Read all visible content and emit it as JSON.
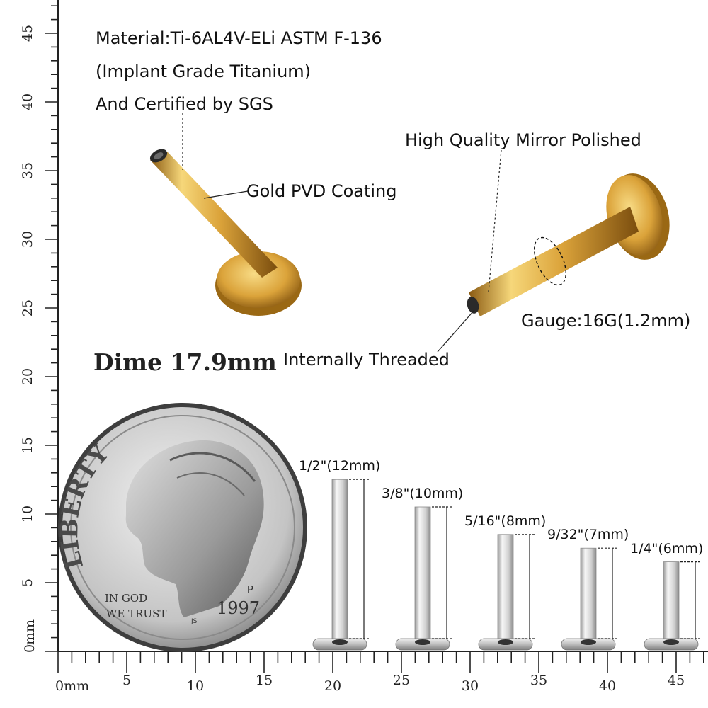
{
  "labels": {
    "material_line1": "Material:Ti-6AL4V-ELi ASTM F-136",
    "material_line2": "(Implant Grade Titanium)",
    "material_line3": "And Certified by SGS",
    "gold_coating": "Gold PVD Coating",
    "mirror_polished": "High Quality Mirror Polished",
    "gauge": "Gauge:16G(1.2mm)",
    "internally_threaded": "Internally Threaded",
    "dime": "Dime 17.9mm"
  },
  "coin": {
    "word_top": "LIBERTY",
    "motto_line1": "IN GOD",
    "motto_line2": "WE TRUST",
    "year": "1997",
    "mint_mark": "P",
    "initials": "JS"
  },
  "sizes": [
    {
      "label": "1/2\"(12mm)",
      "length_mm": 12
    },
    {
      "label": "3/8\"(10mm)",
      "length_mm": 10
    },
    {
      "label": "5/16\"(8mm)",
      "length_mm": 8
    },
    {
      "label": "9/32\"(7mm)",
      "length_mm": 7
    },
    {
      "label": "1/4\"(6mm)",
      "length_mm": 6
    }
  ],
  "ruler": {
    "unit_label": "mm",
    "bottom_zero_label": "0mm",
    "bottom_labels": [
      "5",
      "10",
      "15",
      "20",
      "25",
      "30",
      "35",
      "40",
      "45"
    ],
    "left_zero_label": "0",
    "left_labels": [
      "5",
      "10",
      "15",
      "20",
      "25",
      "30",
      "35",
      "40",
      "45"
    ]
  },
  "colors": {
    "gold_light": "#f6d77a",
    "gold_mid": "#dba33a",
    "gold_dark": "#8a5a12",
    "silver_light": "#f2f2f2",
    "silver_dark": "#8c8c8c",
    "coin_light": "#e8e8e8",
    "coin_dark": "#5c5c5c"
  }
}
